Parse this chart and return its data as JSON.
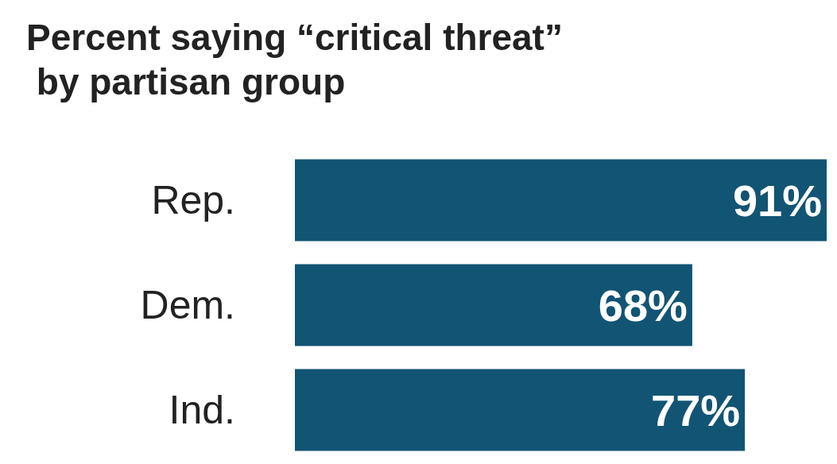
{
  "chart_data": {
    "type": "bar",
    "orientation": "horizontal",
    "title": "Percent saying “critical threat” by partisan group",
    "categories": [
      "Rep.",
      "Dem.",
      "Ind."
    ],
    "values": [
      91,
      68,
      77
    ],
    "value_labels": [
      "91%",
      "68%",
      "77%"
    ],
    "color": "#125473"
  }
}
